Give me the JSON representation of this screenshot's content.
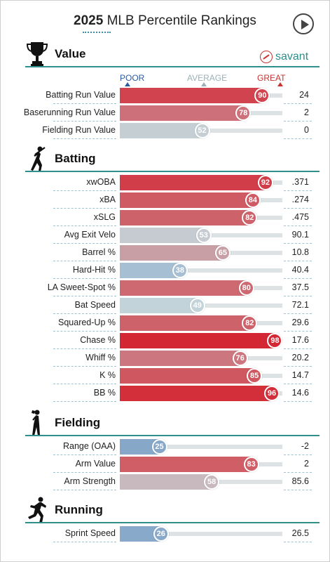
{
  "header": {
    "year": "2025",
    "title_rest": "MLB Percentile Rankings"
  },
  "brand": {
    "name": "savant",
    "color": "#2c8d8a"
  },
  "scale": {
    "poor": "POOR",
    "average": "AVERAGE",
    "great": "GREAT"
  },
  "colors": {
    "poor_marker": "#2a5aa0",
    "average_marker": "#9bb0b8",
    "great_marker": "#c8322f"
  },
  "sections": [
    {
      "title": "Value",
      "icon": "trophy-icon"
    },
    {
      "title": "Batting",
      "icon": "batter-icon"
    },
    {
      "title": "Fielding",
      "icon": "fielder-icon"
    },
    {
      "title": "Running",
      "icon": "runner-icon"
    }
  ],
  "chart_data": {
    "type": "bar",
    "xlim": [
      0,
      100
    ],
    "groups": [
      {
        "name": "Value",
        "rows": [
          {
            "metric": "Batting Run Value",
            "percentile": 90,
            "value": "24"
          },
          {
            "metric": "Baserunning Run Value",
            "percentile": 78,
            "value": "2"
          },
          {
            "metric": "Fielding Run Value",
            "percentile": 52,
            "value": "0"
          }
        ]
      },
      {
        "name": "Batting",
        "rows": [
          {
            "metric": "xwOBA",
            "percentile": 92,
            "value": ".371"
          },
          {
            "metric": "xBA",
            "percentile": 84,
            "value": ".274"
          },
          {
            "metric": "xSLG",
            "percentile": 82,
            "value": ".475"
          },
          {
            "metric": "Avg Exit Velo",
            "percentile": 53,
            "value": "90.1"
          },
          {
            "metric": "Barrel %",
            "percentile": 65,
            "value": "10.8"
          },
          {
            "metric": "Hard-Hit %",
            "percentile": 38,
            "value": "40.4"
          },
          {
            "metric": "LA Sweet-Spot %",
            "percentile": 80,
            "value": "37.5"
          },
          {
            "metric": "Bat Speed",
            "percentile": 49,
            "value": "72.1"
          },
          {
            "metric": "Squared-Up %",
            "percentile": 82,
            "value": "29.6"
          },
          {
            "metric": "Chase %",
            "percentile": 98,
            "value": "17.6"
          },
          {
            "metric": "Whiff %",
            "percentile": 76,
            "value": "20.2"
          },
          {
            "metric": "K %",
            "percentile": 85,
            "value": "14.7"
          },
          {
            "metric": "BB %",
            "percentile": 96,
            "value": "14.6"
          }
        ]
      },
      {
        "name": "Fielding",
        "rows": [
          {
            "metric": "Range (OAA)",
            "percentile": 25,
            "value": "-2"
          },
          {
            "metric": "Arm Value",
            "percentile": 83,
            "value": "2"
          },
          {
            "metric": "Arm Strength",
            "percentile": 58,
            "value": "85.6"
          }
        ]
      },
      {
        "name": "Running",
        "rows": [
          {
            "metric": "Sprint Speed",
            "percentile": 26,
            "value": "26.5"
          }
        ]
      }
    ]
  }
}
